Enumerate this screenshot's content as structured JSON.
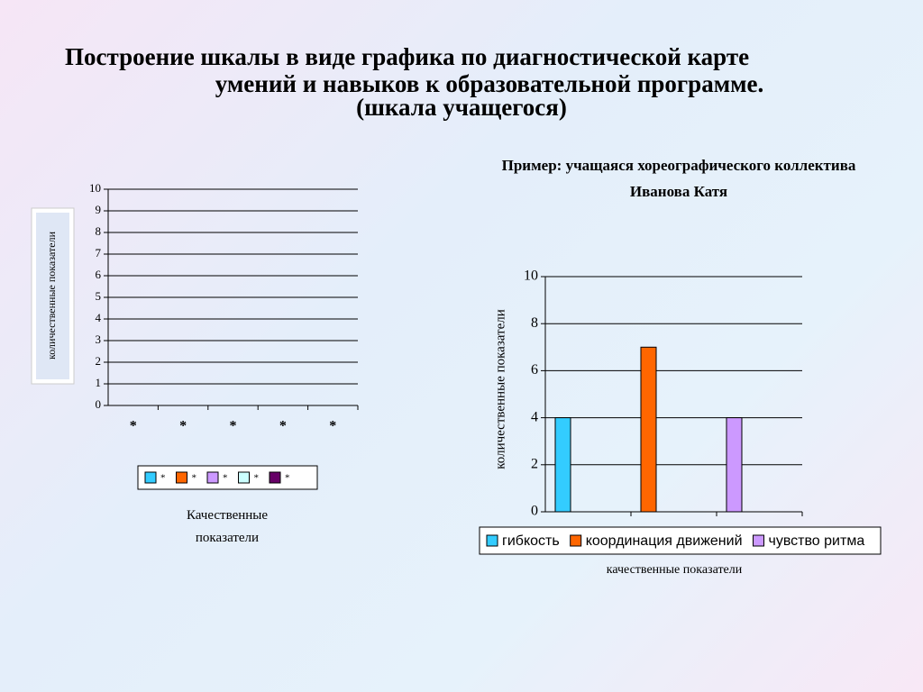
{
  "slide": {
    "title": [
      "Построение шкалы в виде графика по диагностической карте",
      "умений и навыков к образовательной программе.",
      "(шкала учащегося)"
    ]
  },
  "chart_data": [
    {
      "type": "bar",
      "ylabel": "количественные показатели",
      "xlabel": "Качественные показатели",
      "categories": [
        "*",
        "*",
        "*",
        "*",
        "*"
      ],
      "series": [
        {
          "name": "*",
          "color": "#33ccff",
          "values": [
            null,
            null,
            null,
            null,
            null
          ]
        },
        {
          "name": "*",
          "color": "#ff6600",
          "values": [
            null,
            null,
            null,
            null,
            null
          ]
        },
        {
          "name": "*",
          "color": "#cc99ff",
          "values": [
            null,
            null,
            null,
            null,
            null
          ]
        },
        {
          "name": "*",
          "color": "#ccffff",
          "values": [
            null,
            null,
            null,
            null,
            null
          ]
        },
        {
          "name": "*",
          "color": "#660066",
          "values": [
            null,
            null,
            null,
            null,
            null
          ]
        }
      ],
      "ylim": [
        0,
        10
      ],
      "yticks": [
        0,
        1,
        2,
        3,
        4,
        5,
        6,
        7,
        8,
        9,
        10
      ],
      "grid": true,
      "legend": "bottom"
    },
    {
      "type": "bar",
      "title": "Пример: учащаяся хореографического коллектива",
      "subtitle": "Иванова Катя",
      "ylabel": "количественные показатели",
      "xlabel": "качественные показатели",
      "categories": [
        null,
        null,
        null
      ],
      "series": [
        {
          "name": "гибкость",
          "color": "#33ccff",
          "values": [
            4,
            null,
            null
          ]
        },
        {
          "name": "координация движений",
          "color": "#ff6600",
          "values": [
            null,
            7,
            null
          ]
        },
        {
          "name": "чувство ритма",
          "color": "#cc99ff",
          "values": [
            null,
            null,
            4
          ]
        }
      ],
      "ylim": [
        0,
        10
      ],
      "yticks": [
        0,
        2,
        4,
        6,
        8,
        10
      ],
      "grid": true,
      "legend": "bottom"
    }
  ]
}
